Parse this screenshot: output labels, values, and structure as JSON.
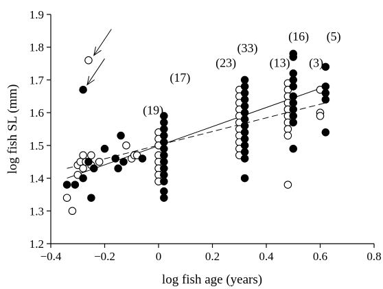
{
  "chart_data": {
    "type": "scatter",
    "xlabel": "log fish age (years)",
    "ylabel": "log fish SL (mm)",
    "xlim": [
      -0.4,
      0.8
    ],
    "ylim": [
      1.2,
      1.9
    ],
    "xticks": [
      -0.4,
      -0.2,
      0,
      0.2,
      0.4,
      0.6,
      0.8
    ],
    "yticks": [
      1.2,
      1.3,
      1.4,
      1.5,
      1.6,
      1.7,
      1.8,
      1.9
    ],
    "xtick_labels": [
      "−0.4",
      "−0.2",
      "0",
      "0.2",
      "0.4",
      "0.6",
      "0.8"
    ],
    "ytick_labels": [
      "1.2",
      "1.3",
      "1.4",
      "1.5",
      "1.6",
      "1.7",
      "1.8",
      "1.9"
    ],
    "series": [
      {
        "marker": "open-circle",
        "color": "#000000",
        "points": [
          [
            -0.34,
            1.34
          ],
          [
            -0.32,
            1.3
          ],
          [
            -0.3,
            1.41
          ],
          [
            -0.3,
            1.44
          ],
          [
            -0.29,
            1.45
          ],
          [
            -0.28,
            1.47
          ],
          [
            -0.28,
            1.43
          ],
          [
            -0.27,
            1.45
          ],
          [
            -0.26,
            1.76
          ],
          [
            -0.25,
            1.47
          ],
          [
            -0.25,
            1.44
          ],
          [
            -0.22,
            1.45
          ],
          [
            -0.12,
            1.5
          ],
          [
            -0.1,
            1.46
          ],
          [
            -0.09,
            1.47
          ],
          [
            -0.08,
            1.47
          ],
          [
            0.0,
            1.54
          ],
          [
            0.0,
            1.52
          ],
          [
            0.0,
            1.5
          ],
          [
            0.0,
            1.47
          ],
          [
            0.0,
            1.45
          ],
          [
            0.0,
            1.43
          ],
          [
            0.0,
            1.41
          ],
          [
            0.0,
            1.39
          ],
          [
            0.3,
            1.67
          ],
          [
            0.3,
            1.65
          ],
          [
            0.3,
            1.63
          ],
          [
            0.3,
            1.61
          ],
          [
            0.3,
            1.59
          ],
          [
            0.3,
            1.57
          ],
          [
            0.3,
            1.55
          ],
          [
            0.3,
            1.53
          ],
          [
            0.3,
            1.51
          ],
          [
            0.3,
            1.49
          ],
          [
            0.3,
            1.47
          ],
          [
            0.48,
            1.69
          ],
          [
            0.48,
            1.67
          ],
          [
            0.48,
            1.65
          ],
          [
            0.48,
            1.63
          ],
          [
            0.48,
            1.61
          ],
          [
            0.48,
            1.59
          ],
          [
            0.48,
            1.57
          ],
          [
            0.48,
            1.55
          ],
          [
            0.48,
            1.53
          ],
          [
            0.48,
            1.38
          ],
          [
            0.6,
            1.67
          ],
          [
            0.6,
            1.6
          ],
          [
            0.6,
            1.59
          ]
        ]
      },
      {
        "marker": "filled-circle",
        "color": "#000000",
        "points": [
          [
            -0.34,
            1.38
          ],
          [
            -0.31,
            1.38
          ],
          [
            -0.28,
            1.67
          ],
          [
            -0.28,
            1.4
          ],
          [
            -0.26,
            1.45
          ],
          [
            -0.25,
            1.34
          ],
          [
            -0.24,
            1.43
          ],
          [
            -0.2,
            1.49
          ],
          [
            -0.16,
            1.46
          ],
          [
            -0.15,
            1.43
          ],
          [
            -0.14,
            1.53
          ],
          [
            -0.13,
            1.45
          ],
          [
            -0.06,
            1.46
          ],
          [
            0.02,
            1.59
          ],
          [
            0.02,
            1.57
          ],
          [
            0.02,
            1.55
          ],
          [
            0.02,
            1.53
          ],
          [
            0.02,
            1.51
          ],
          [
            0.02,
            1.49
          ],
          [
            0.02,
            1.47
          ],
          [
            0.02,
            1.45
          ],
          [
            0.02,
            1.43
          ],
          [
            0.02,
            1.41
          ],
          [
            0.02,
            1.39
          ],
          [
            0.02,
            1.36
          ],
          [
            0.02,
            1.34
          ],
          [
            0.32,
            1.7
          ],
          [
            0.32,
            1.68
          ],
          [
            0.32,
            1.66
          ],
          [
            0.32,
            1.64
          ],
          [
            0.32,
            1.62
          ],
          [
            0.32,
            1.6
          ],
          [
            0.32,
            1.58
          ],
          [
            0.32,
            1.56
          ],
          [
            0.32,
            1.54
          ],
          [
            0.32,
            1.52
          ],
          [
            0.32,
            1.5
          ],
          [
            0.32,
            1.48
          ],
          [
            0.32,
            1.46
          ],
          [
            0.32,
            1.4
          ],
          [
            0.5,
            1.78
          ],
          [
            0.5,
            1.77
          ],
          [
            0.5,
            1.72
          ],
          [
            0.5,
            1.7
          ],
          [
            0.5,
            1.68
          ],
          [
            0.5,
            1.65
          ],
          [
            0.5,
            1.63
          ],
          [
            0.5,
            1.61
          ],
          [
            0.5,
            1.59
          ],
          [
            0.5,
            1.57
          ],
          [
            0.5,
            1.49
          ],
          [
            0.62,
            1.74
          ],
          [
            0.62,
            1.68
          ],
          [
            0.62,
            1.66
          ],
          [
            0.62,
            1.64
          ],
          [
            0.62,
            1.54
          ]
        ]
      }
    ],
    "regression_lines": [
      {
        "style": "solid",
        "x": [
          -0.34,
          0.62
        ],
        "y": [
          1.4,
          1.68
        ]
      },
      {
        "style": "dashed",
        "x": [
          -0.34,
          0.62
        ],
        "y": [
          1.43,
          1.63
        ]
      }
    ],
    "count_labels": [
      {
        "text": "(19)",
        "x": -0.02,
        "y": 1.595
      },
      {
        "text": "(17)",
        "x": 0.08,
        "y": 1.695
      },
      {
        "text": "(23)",
        "x": 0.25,
        "y": 1.74
      },
      {
        "text": "(33)",
        "x": 0.33,
        "y": 1.785
      },
      {
        "text": "(13)",
        "x": 0.45,
        "y": 1.74
      },
      {
        "text": "(16)",
        "x": 0.52,
        "y": 1.82
      },
      {
        "text": "(3)",
        "x": 0.585,
        "y": 1.74
      },
      {
        "text": "(5)",
        "x": 0.65,
        "y": 1.82
      }
    ],
    "arrows": [
      {
        "from": [
          -0.175,
          1.855
        ],
        "to": [
          -0.24,
          1.775
        ]
      },
      {
        "from": [
          -0.2,
          1.765
        ],
        "to": [
          -0.265,
          1.685
        ]
      }
    ]
  }
}
